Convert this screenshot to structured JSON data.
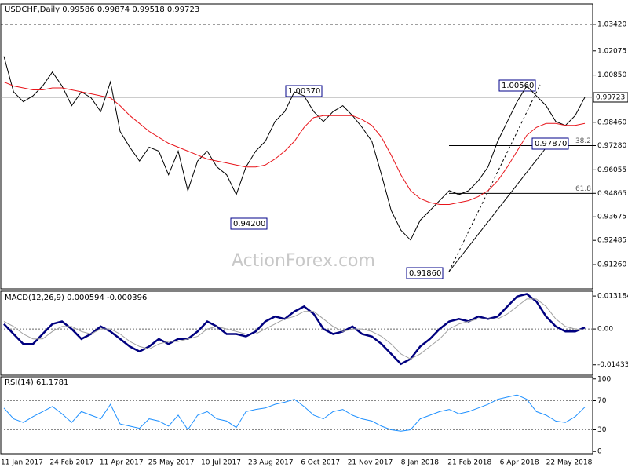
{
  "chart_data": [
    {
      "type": "line",
      "title": "USDCHF,Daily  0.99586 0.99874 0.99518 0.99723",
      "x_labels": [
        "11 Jan 2017",
        "24 Feb 2017",
        "11 Apr 2017",
        "25 May 2017",
        "10 Jul 2017",
        "23 Aug 2017",
        "6 Oct 2017",
        "21 Nov 2017",
        "8 Jan 2018",
        "21 Feb 2018",
        "6 Apr 2018",
        "22 May 2018"
      ],
      "ylim": [
        0.9003,
        1.0445
      ],
      "yticks": [
        {
          "value": 1.0342,
          "label": "1.03420"
        },
        1.02075,
        {
          "value": 1.0085,
          "label": "1.00850"
        },
        {
          "value": 0.9846,
          "label": "0.98460"
        },
        {
          "value": 0.9728,
          "label": "0.97280"
        },
        0.96055,
        0.94865,
        0.93675,
        0.92485,
        {
          "value": 0.9126,
          "label": "0.91260"
        }
      ],
      "last_price": {
        "value": 0.99723,
        "label": "0.99723"
      },
      "series": [
        {
          "name": "USDCHF",
          "color": "#000000",
          "values": [
            1.018,
            1.0,
            0.995,
            0.998,
            1.003,
            1.01,
            1.003,
            0.993,
            1.0,
            0.997,
            0.99,
            1.005,
            0.98,
            0.972,
            0.965,
            0.972,
            0.97,
            0.958,
            0.97,
            0.95,
            0.965,
            0.97,
            0.962,
            0.958,
            0.948,
            0.962,
            0.97,
            0.975,
            0.985,
            0.99,
            1.0,
            0.998,
            0.99,
            0.985,
            0.99,
            0.993,
            0.988,
            0.982,
            0.975,
            0.958,
            0.94,
            0.93,
            0.925,
            0.935,
            0.94,
            0.945,
            0.95,
            0.948,
            0.95,
            0.955,
            0.962,
            0.975,
            0.985,
            0.995,
            1.003,
            0.998,
            0.993,
            0.985,
            0.983,
            0.988,
            0.99723
          ]
        },
        {
          "name": "MA",
          "color": "#e8151b",
          "values": [
            1.005,
            1.003,
            1.002,
            1.001,
            1.001,
            1.002,
            1.002,
            1.001,
            1.0,
            0.999,
            0.998,
            0.997,
            0.993,
            0.988,
            0.984,
            0.98,
            0.977,
            0.974,
            0.972,
            0.97,
            0.968,
            0.966,
            0.965,
            0.964,
            0.963,
            0.962,
            0.962,
            0.963,
            0.966,
            0.97,
            0.975,
            0.982,
            0.987,
            0.988,
            0.988,
            0.988,
            0.988,
            0.986,
            0.983,
            0.977,
            0.968,
            0.958,
            0.95,
            0.946,
            0.944,
            0.943,
            0.943,
            0.944,
            0.945,
            0.947,
            0.95,
            0.955,
            0.962,
            0.97,
            0.978,
            0.982,
            0.984,
            0.984,
            0.983,
            0.983,
            0.984
          ]
        }
      ],
      "fib_levels": [
        {
          "label": "38.2",
          "value": 0.9728
        },
        {
          "label": "61.8",
          "value": 0.9486
        }
      ],
      "annotations": [
        "1.00370",
        "0.94200",
        "0.91860",
        "1.00560",
        "0.97870"
      ],
      "watermark": "ActionForex.com"
    },
    {
      "type": "line",
      "title": "MACD(12,26,9) 0.000594 -0.000396",
      "ylim": [
        -0.0185,
        0.0151
      ],
      "yticks": [
        0.013184,
        {
          "value": 0,
          "label": "0.00"
        },
        -0.014339
      ],
      "series": [
        {
          "name": "MACD",
          "color": "#00007f",
          "values": [
            0.002,
            -0.002,
            -0.006,
            -0.006,
            -0.002,
            0.002,
            0.003,
            0.0,
            -0.004,
            -0.002,
            0.001,
            -0.001,
            -0.004,
            -0.007,
            -0.009,
            -0.007,
            -0.004,
            -0.006,
            -0.004,
            -0.004,
            -0.001,
            0.003,
            0.001,
            -0.002,
            -0.002,
            -0.003,
            -0.001,
            0.003,
            0.005,
            0.004,
            0.007,
            0.009,
            0.006,
            0.0,
            -0.002,
            -0.001,
            0.001,
            -0.002,
            -0.003,
            -0.006,
            -0.01,
            -0.014,
            -0.012,
            -0.007,
            -0.004,
            0.0,
            0.003,
            0.004,
            0.003,
            0.005,
            0.004,
            0.005,
            0.009,
            0.013,
            0.014,
            0.011,
            0.005,
            0.001,
            -0.001,
            -0.001,
            0.000594
          ]
        },
        {
          "name": "Signal",
          "color": "#a0a0a0",
          "values": [
            0.003,
            0.001,
            -0.002,
            -0.004,
            -0.004,
            -0.001,
            0.001,
            0.001,
            -0.001,
            -0.002,
            0.0,
            0.0,
            -0.002,
            -0.005,
            -0.007,
            -0.008,
            -0.006,
            -0.005,
            -0.005,
            -0.004,
            -0.003,
            0.0,
            0.001,
            0.0,
            -0.001,
            -0.002,
            -0.002,
            0.0,
            0.002,
            0.004,
            0.005,
            0.007,
            0.007,
            0.004,
            0.001,
            -0.001,
            0.0,
            0.0,
            -0.001,
            -0.003,
            -0.006,
            -0.01,
            -0.012,
            -0.01,
            -0.007,
            -0.004,
            0.0,
            0.002,
            0.003,
            0.004,
            0.004,
            0.004,
            0.006,
            0.009,
            0.012,
            0.012,
            0.009,
            0.004,
            0.001,
            0.0,
            -0.000396
          ]
        }
      ]
    },
    {
      "type": "line",
      "title": "RSI(14) 61.1781",
      "ylim": [
        -3,
        103
      ],
      "yticks": [
        100,
        70,
        30,
        0
      ],
      "levels": [
        70,
        30
      ],
      "series": [
        {
          "name": "RSI",
          "color": "#1e90ff",
          "values": [
            60,
            45,
            40,
            48,
            55,
            62,
            52,
            40,
            55,
            50,
            45,
            65,
            38,
            35,
            32,
            45,
            42,
            35,
            50,
            30,
            50,
            55,
            45,
            42,
            33,
            55,
            58,
            60,
            65,
            68,
            72,
            62,
            50,
            45,
            55,
            58,
            50,
            45,
            42,
            35,
            30,
            28,
            30,
            45,
            50,
            55,
            58,
            52,
            55,
            60,
            65,
            72,
            75,
            78,
            72,
            55,
            50,
            42,
            40,
            48,
            61.1781
          ]
        }
      ]
    }
  ]
}
